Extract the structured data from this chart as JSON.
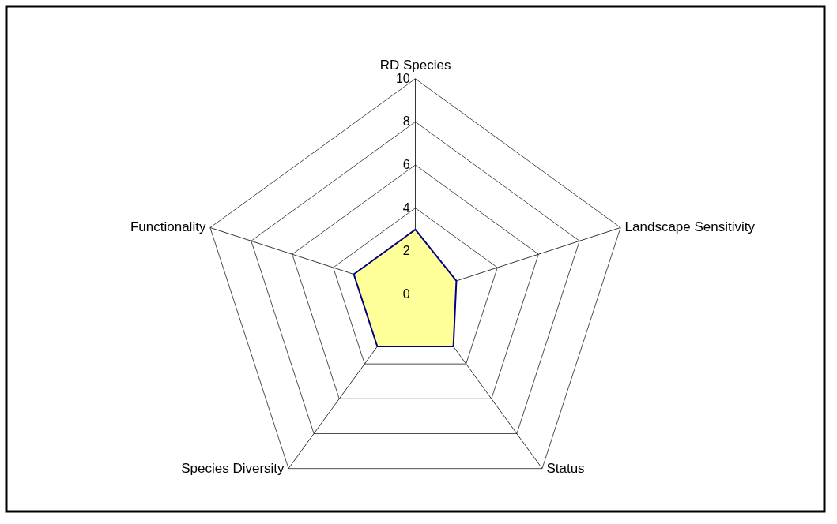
{
  "chart_data": {
    "type": "radar",
    "categories": [
      "RD Species",
      "Landscape Sensitivity",
      "Status",
      "Species Diversity",
      "Functionality"
    ],
    "series": [
      {
        "color": "#000080",
        "values": [
          3,
          2,
          3,
          3,
          3
        ]
      }
    ],
    "ylim": [
      0,
      10
    ],
    "yticks": [
      0,
      2,
      4,
      6,
      8,
      10
    ],
    "grid": true,
    "marker": "none",
    "line_style": "solid"
  }
}
